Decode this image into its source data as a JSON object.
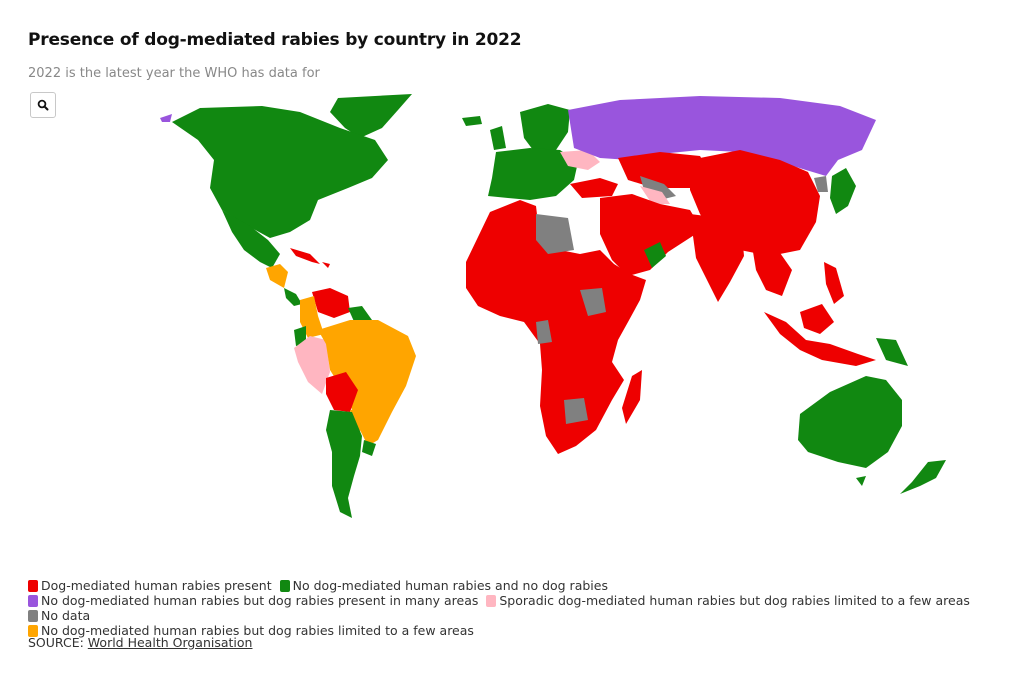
{
  "title": "Presence of dog-mediated rabies by country in 2022",
  "subtitle": "2022 is the latest year the WHO has data for",
  "zoom_button": {
    "icon": "search-icon"
  },
  "colors": {
    "present": "#ee0000",
    "free": "#118811",
    "dog_rabies_many_areas": "#9955dd",
    "sporadic": "#ffb6c1",
    "no_data": "#808080",
    "no_human_limited": "#ffa500"
  },
  "legend": [
    {
      "key": "present",
      "label": "Dog-mediated human rabies present"
    },
    {
      "key": "free",
      "label": "No dog-mediated human rabies and no dog rabies"
    },
    {
      "key": "dog_rabies_many_areas",
      "label": "No dog-mediated human rabies but dog rabies present in many areas"
    },
    {
      "key": "sporadic",
      "label": "Sporadic dog-mediated human rabies but dog rabies limited to a few areas"
    },
    {
      "key": "no_data",
      "label": "No data"
    },
    {
      "key": "no_human_limited",
      "label": "No dog-mediated human rabies but dog rabies limited to a few areas"
    }
  ],
  "source": {
    "prefix": "SOURCE: ",
    "link_text": "World Health Organisation"
  }
}
